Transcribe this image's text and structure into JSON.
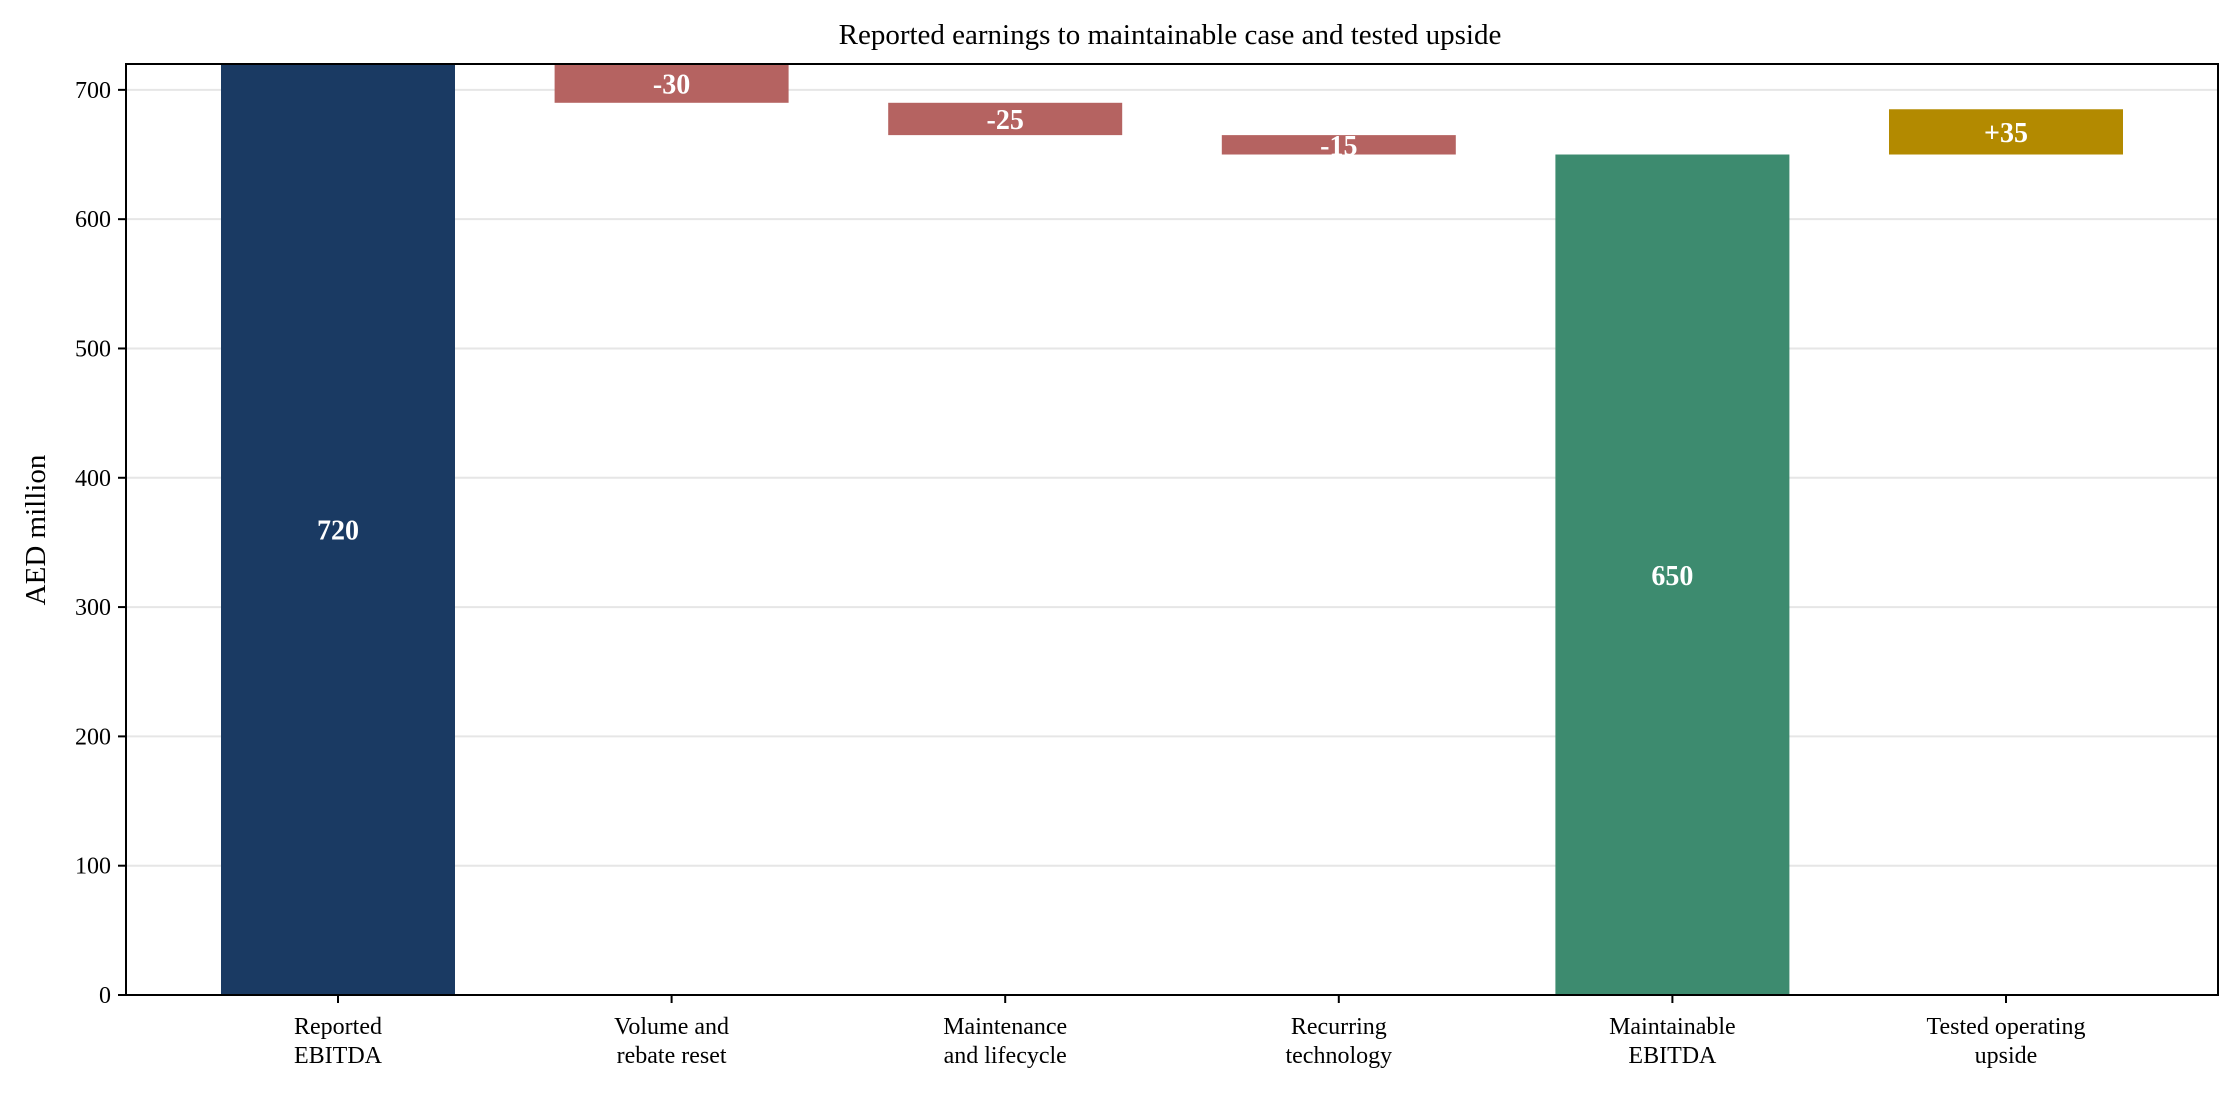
{
  "chart_data": {
    "type": "bar",
    "subtype": "waterfall",
    "title": "Reported earnings to maintainable case and tested upside",
    "ylabel": "AED million",
    "xlabel": "",
    "ylim": [
      0,
      720
    ],
    "yticks": [
      "0",
      "100",
      "200",
      "300",
      "400",
      "500",
      "600",
      "700"
    ],
    "grid": "horizontal",
    "categories": [
      [
        "Reported",
        "EBITDA"
      ],
      [
        "Volume and",
        "rebate reset"
      ],
      [
        "Maintenance",
        "and lifecycle"
      ],
      [
        "Recurring",
        "technology"
      ],
      [
        "Maintainable",
        "EBITDA"
      ],
      [
        "Tested operating",
        "upside"
      ]
    ],
    "steps": [
      {
        "kind": "total",
        "start": 0,
        "end": 720,
        "label": "720"
      },
      {
        "kind": "decrease",
        "start": 720,
        "end": 690,
        "label": "-30"
      },
      {
        "kind": "decrease",
        "start": 690,
        "end": 665,
        "label": "-25"
      },
      {
        "kind": "decrease",
        "start": 665,
        "end": 650,
        "label": "-15"
      },
      {
        "kind": "total",
        "start": 0,
        "end": 650,
        "label": "650"
      },
      {
        "kind": "increase",
        "start": 650,
        "end": 685,
        "label": "+35"
      }
    ],
    "colors": {
      "total": [
        "#1a3a63",
        "#3d8b6f"
      ],
      "decrease": "#b56361",
      "increase": "#b38a00"
    }
  }
}
